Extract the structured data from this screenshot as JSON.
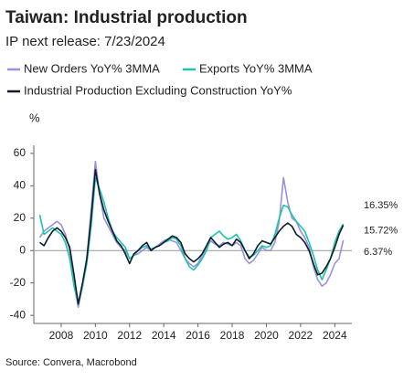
{
  "chart_data": {
    "type": "line",
    "title": "Taiwan: Industrial production",
    "subtitle": "IP next release: 7/23/2024",
    "y_label": "%",
    "source": "Source: Convera, Macrobond",
    "x": [
      2006.75,
      2007,
      2007.25,
      2007.5,
      2007.75,
      2008,
      2008.25,
      2008.5,
      2008.75,
      2009,
      2009.25,
      2009.5,
      2009.75,
      2010,
      2010.25,
      2010.5,
      2010.75,
      2011,
      2011.25,
      2011.5,
      2011.75,
      2012,
      2012.25,
      2012.5,
      2012.75,
      2013,
      2013.25,
      2013.5,
      2013.75,
      2014,
      2014.25,
      2014.5,
      2014.75,
      2015,
      2015.25,
      2015.5,
      2015.75,
      2016,
      2016.25,
      2016.5,
      2016.75,
      2017,
      2017.25,
      2017.5,
      2017.75,
      2018,
      2018.25,
      2018.5,
      2018.75,
      2019,
      2019.25,
      2019.5,
      2019.75,
      2020,
      2020.25,
      2020.5,
      2020.75,
      2021,
      2021.25,
      2021.5,
      2021.75,
      2022,
      2022.25,
      2022.5,
      2022.75,
      2023,
      2023.25,
      2023.5,
      2023.75,
      2024,
      2024.25,
      2024.5
    ],
    "series": [
      {
        "name": "New Orders YoY% 3MMA",
        "color": "#9b8fe0",
        "values": [
          8,
          12,
          14,
          16,
          18,
          16,
          10,
          0,
          -20,
          -35,
          -22,
          -5,
          25,
          55,
          35,
          20,
          15,
          10,
          5,
          2,
          0,
          -5,
          -3,
          -2,
          0,
          2,
          0,
          2,
          4,
          6,
          7,
          6,
          5,
          0,
          -5,
          -8,
          -10,
          -8,
          -3,
          2,
          6,
          4,
          3,
          5,
          4,
          3,
          5,
          3,
          -5,
          -8,
          -6,
          -2,
          2,
          0,
          0,
          5,
          18,
          45,
          30,
          20,
          18,
          12,
          8,
          2,
          -10,
          -18,
          -22,
          -20,
          -15,
          -8,
          -5,
          6.37
        ],
        "value_labels": [
          null,
          null,
          null,
          null,
          null,
          null,
          null,
          null,
          null,
          null,
          null,
          null,
          null,
          null,
          null,
          null,
          null,
          null,
          null,
          null,
          null,
          null,
          null,
          null,
          null,
          null,
          null,
          null,
          null,
          null,
          null,
          null,
          null,
          null,
          null,
          null,
          null,
          null,
          null,
          null,
          null,
          null,
          null,
          null,
          null,
          null,
          null,
          null,
          null,
          null,
          null,
          null,
          null,
          null,
          null,
          null,
          null,
          null,
          null,
          null,
          null,
          null,
          null,
          null,
          null,
          null,
          null,
          null,
          null,
          null,
          null,
          "6.37%"
        ]
      },
      {
        "name": "Exports YoY% 3MMA",
        "color": "#1fc4a8",
        "values": [
          22,
          10,
          12,
          14,
          12,
          10,
          5,
          -5,
          -22,
          -33,
          -22,
          -8,
          15,
          45,
          38,
          30,
          20,
          12,
          8,
          5,
          2,
          -5,
          -3,
          0,
          2,
          3,
          1,
          2,
          3,
          5,
          6,
          8,
          7,
          3,
          -5,
          -10,
          -12,
          -9,
          -5,
          0,
          8,
          10,
          12,
          9,
          7,
          8,
          10,
          6,
          0,
          -4,
          -3,
          0,
          3,
          2,
          3,
          10,
          20,
          28,
          27,
          22,
          18,
          15,
          12,
          5,
          -3,
          -12,
          -18,
          -12,
          -5,
          5,
          12,
          16.35
        ],
        "value_labels": [
          null,
          null,
          null,
          null,
          null,
          null,
          null,
          null,
          null,
          null,
          null,
          null,
          null,
          null,
          null,
          null,
          null,
          null,
          null,
          null,
          null,
          null,
          null,
          null,
          null,
          null,
          null,
          null,
          null,
          null,
          null,
          null,
          null,
          null,
          null,
          null,
          null,
          null,
          null,
          null,
          null,
          null,
          null,
          null,
          null,
          null,
          null,
          null,
          null,
          null,
          null,
          null,
          null,
          null,
          null,
          null,
          null,
          null,
          null,
          null,
          null,
          null,
          null,
          null,
          null,
          null,
          null,
          null,
          null,
          null,
          null,
          "16.35%"
        ]
      },
      {
        "name": "Industrial Production Excluding Construction YoY%",
        "color": "#0d1b2a",
        "values": [
          5,
          3,
          8,
          12,
          14,
          12,
          8,
          2,
          -15,
          -33,
          -20,
          -5,
          20,
          50,
          35,
          25,
          18,
          12,
          6,
          3,
          -2,
          -8,
          -2,
          0,
          3,
          5,
          0,
          2,
          3,
          5,
          7,
          9,
          8,
          5,
          -2,
          -5,
          -7,
          -5,
          -2,
          3,
          8,
          5,
          2,
          4,
          5,
          3,
          7,
          5,
          0,
          -5,
          -2,
          3,
          6,
          5,
          4,
          8,
          12,
          15,
          17,
          15,
          10,
          8,
          5,
          0,
          -8,
          -15,
          -14,
          -10,
          -5,
          2,
          10,
          15.72
        ],
        "value_labels": [
          null,
          null,
          null,
          null,
          null,
          null,
          null,
          null,
          null,
          null,
          null,
          null,
          null,
          null,
          null,
          null,
          null,
          null,
          null,
          null,
          null,
          null,
          null,
          null,
          null,
          null,
          null,
          null,
          null,
          null,
          null,
          null,
          null,
          null,
          null,
          null,
          null,
          null,
          null,
          null,
          null,
          null,
          null,
          null,
          null,
          null,
          null,
          null,
          null,
          null,
          null,
          null,
          null,
          null,
          null,
          null,
          null,
          null,
          null,
          null,
          null,
          null,
          null,
          null,
          null,
          null,
          null,
          null,
          null,
          null,
          null,
          "15.72%"
        ]
      }
    ],
    "xlim": [
      2006.4,
      2025
    ],
    "xticks": [
      2008,
      2010,
      2012,
      2014,
      2016,
      2018,
      2020,
      2022,
      2024
    ],
    "ylim": [
      -45,
      65
    ],
    "yticks": [
      -40,
      -20,
      0,
      20,
      40,
      60
    ]
  }
}
